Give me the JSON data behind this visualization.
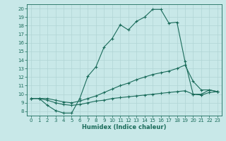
{
  "xlabel": "Humidex (Indice chaleur)",
  "bg_color": "#c8e8e8",
  "line_color": "#1a6b5a",
  "grid_color": "#b0d4d4",
  "xlim": [
    -0.5,
    23.5
  ],
  "ylim": [
    7.5,
    20.5
  ],
  "xticks": [
    0,
    1,
    2,
    3,
    4,
    5,
    6,
    7,
    8,
    9,
    10,
    11,
    12,
    13,
    14,
    15,
    16,
    17,
    18,
    19,
    20,
    21,
    22,
    23
  ],
  "yticks": [
    8,
    9,
    10,
    11,
    12,
    13,
    14,
    15,
    16,
    17,
    18,
    19,
    20
  ],
  "line1_x": [
    0,
    1,
    2,
    3,
    4,
    5,
    6,
    7,
    8,
    9,
    10,
    11,
    12,
    13,
    14,
    15,
    16,
    17,
    18,
    19,
    20,
    21,
    22,
    23
  ],
  "line1_y": [
    9.5,
    9.5,
    8.7,
    8.1,
    7.8,
    7.8,
    9.5,
    12.1,
    13.2,
    15.5,
    16.5,
    18.1,
    17.5,
    18.5,
    19.0,
    19.9,
    19.9,
    18.3,
    18.4,
    13.8,
    10.0,
    10.0,
    10.5,
    10.3
  ],
  "line2_x": [
    0,
    1,
    2,
    3,
    4,
    5,
    6,
    7,
    8,
    9,
    10,
    11,
    12,
    13,
    14,
    15,
    16,
    17,
    18,
    19,
    20,
    21,
    22,
    23
  ],
  "line2_y": [
    9.5,
    9.5,
    9.5,
    9.3,
    9.1,
    9.0,
    9.2,
    9.5,
    9.8,
    10.2,
    10.6,
    11.0,
    11.3,
    11.7,
    12.0,
    12.3,
    12.5,
    12.7,
    13.0,
    13.4,
    11.5,
    10.5,
    10.5,
    10.3
  ],
  "line3_x": [
    0,
    1,
    2,
    3,
    4,
    5,
    6,
    7,
    8,
    9,
    10,
    11,
    12,
    13,
    14,
    15,
    16,
    17,
    18,
    19,
    20,
    21,
    22,
    23
  ],
  "line3_y": [
    9.5,
    9.5,
    9.3,
    9.0,
    8.8,
    8.7,
    8.8,
    9.0,
    9.2,
    9.3,
    9.5,
    9.6,
    9.7,
    9.8,
    9.9,
    10.0,
    10.1,
    10.2,
    10.3,
    10.4,
    10.0,
    9.9,
    10.2,
    10.3
  ]
}
